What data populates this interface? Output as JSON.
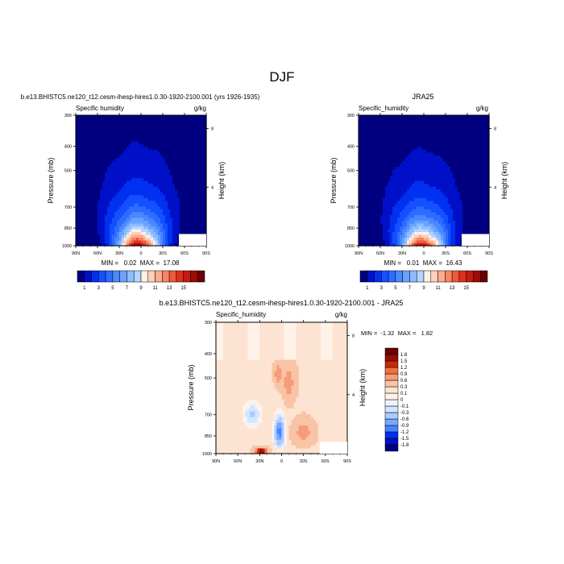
{
  "figure": {
    "title": "DJF"
  },
  "colors": {
    "positive_scale": [
      "#000080",
      "#0010c8",
      "#0030f0",
      "#1450ff",
      "#2d6cff",
      "#4a88ff",
      "#6aa2ff",
      "#8cbcff",
      "#b3d4ff",
      "#dfeaff",
      "#fff0e6",
      "#fdd0b8",
      "#fbae8c",
      "#f78462",
      "#f0583b",
      "#e0301e",
      "#c41a10",
      "#9b0d08",
      "#6b0000"
    ],
    "anomaly_scale": [
      "#000080",
      "#0010c8",
      "#0030f0",
      "#1e5aff",
      "#4684ff",
      "#76a8ff",
      "#a9cbff",
      "#d3e4ff",
      "#eef4ff",
      "#ffffff",
      "#fff2e8",
      "#fde4d2",
      "#f9c4a6",
      "#f69c78",
      "#f2703f",
      "#e5461c",
      "#c8280a",
      "#960f02",
      "#6b0000"
    ]
  },
  "chart_data": [
    {
      "type": "heatmap",
      "id": "model",
      "title": "b.e13.BHISTC5.ne120_t12.cesm-ihesp-hires1.0.30-1920-2100.001 (yrs 1926-1935)",
      "left_label": "Specific humidity",
      "right_label": "g/kg",
      "ylabel": "Pressure (mb)",
      "ylabel_right": "Height (km)",
      "x_ticks": [
        "90N",
        "60N",
        "30N",
        "0",
        "30S",
        "60S",
        "90S"
      ],
      "y_ticks": [
        "300",
        "400",
        "500",
        "700",
        "850",
        "1000"
      ],
      "height_ticks": [
        "8",
        "4"
      ],
      "xlim": [
        90,
        -90
      ],
      "ylim": [
        1000,
        300
      ],
      "stats": "MIN =   0.02  MAX =  17.08",
      "colorbar_labels": [
        "1",
        "3",
        "5",
        "7",
        "9",
        "11",
        "13",
        "15"
      ],
      "levels": [
        1,
        2,
        3,
        4,
        5,
        6,
        7,
        8,
        9,
        10,
        11,
        12,
        13,
        14,
        15,
        16,
        17
      ],
      "field": {
        "peak": 17.08,
        "center_lat": 3,
        "width_at_surface": 30,
        "scale_height_mb": 90
      }
    },
    {
      "type": "heatmap",
      "id": "obs",
      "title": "JRA25",
      "left_label": "Specific_humidity",
      "right_label": "g/kg",
      "ylabel": "Pressure (mb)",
      "ylabel_right": "Height (km)",
      "x_ticks": [
        "90N",
        "60N",
        "30N",
        "0",
        "30S",
        "60S",
        "90S"
      ],
      "y_ticks": [
        "300",
        "400",
        "500",
        "700",
        "850",
        "1000"
      ],
      "height_ticks": [
        "8",
        "4"
      ],
      "xlim": [
        90,
        -90
      ],
      "ylim": [
        1000,
        300
      ],
      "stats": "MIN =   0.01  MAX =  16.43",
      "colorbar_labels": [
        "1",
        "3",
        "5",
        "7",
        "9",
        "11",
        "13",
        "15"
      ],
      "levels": [
        1,
        2,
        3,
        4,
        5,
        6,
        7,
        8,
        9,
        10,
        11,
        12,
        13,
        14,
        15,
        16,
        17
      ],
      "field": {
        "peak": 16.43,
        "center_lat": 2,
        "width_at_surface": 30,
        "scale_height_mb": 88
      }
    },
    {
      "type": "heatmap",
      "id": "diff",
      "title": "b.e13.BHISTC5.ne120_t12.cesm-ihesp-hires1.0.30-1920-2100.001 - JRA25",
      "left_label": "Specific_humidity",
      "right_label": "g/kg",
      "ylabel": "Pressure (mb)",
      "ylabel_right": "Height (km)",
      "x_ticks": [
        "90N",
        "60N",
        "30N",
        "0",
        "30S",
        "60S",
        "90S"
      ],
      "y_ticks": [
        "300",
        "400",
        "500",
        "700",
        "850",
        "1000"
      ],
      "height_ticks": [
        "8",
        "4"
      ],
      "xlim": [
        90,
        -90
      ],
      "ylim": [
        1000,
        300
      ],
      "stats": "MIN =  -1.32  MAX =   1.82",
      "colorbar_labels": [
        "1.8",
        "1.5",
        "1.2",
        "0.9",
        "0.6",
        "0.3",
        "0.1",
        "0",
        "-0.1",
        "-0.3",
        "-0.6",
        "-0.9",
        "-1.2",
        "-1.5",
        "-1.8"
      ],
      "levels": [
        -1.8,
        -1.5,
        -1.2,
        -0.9,
        -0.6,
        -0.3,
        -0.1,
        0,
        0.1,
        0.3,
        0.6,
        0.9,
        1.2,
        1.5,
        1.8
      ],
      "extremes": {
        "min": -1.32,
        "max": 1.82
      }
    }
  ]
}
